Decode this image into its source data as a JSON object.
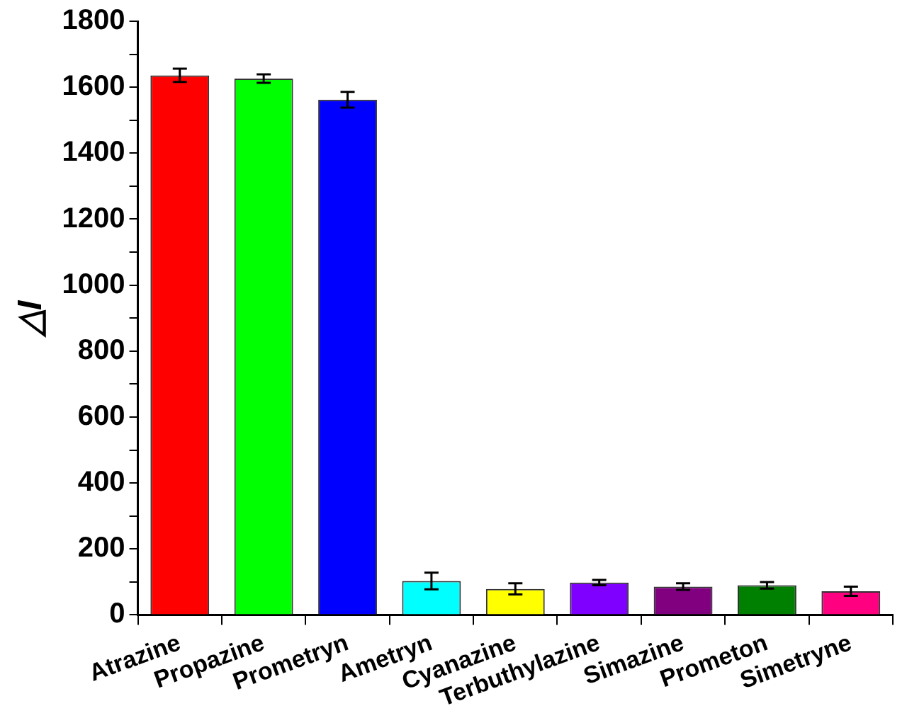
{
  "chart_data": {
    "type": "bar",
    "ylabel": "△I",
    "categories": [
      "Atrazine",
      "Propazine",
      "Prometryn",
      "Ametryn",
      "Cyanazine",
      "Terbuthylazine",
      "Simazine",
      "Prometon",
      "Simetryne"
    ],
    "values": [
      1636,
      1626,
      1562,
      103,
      79,
      98,
      86,
      90,
      72
    ],
    "errors": [
      20,
      13,
      24,
      25,
      17,
      8,
      10,
      10,
      14
    ],
    "colors": [
      "#ff0000",
      "#00ff00",
      "#0000ff",
      "#00ffff",
      "#ffff00",
      "#8000ff",
      "#800080",
      "#008000",
      "#ff0080"
    ],
    "ylim": [
      0,
      1800
    ],
    "yticks": [
      0,
      {
        "value": 100,
        "label": null
      },
      200,
      {
        "value": 300,
        "label": null
      },
      400,
      {
        "value": 500,
        "label": null
      },
      600,
      {
        "value": 700,
        "label": null
      },
      800,
      {
        "value": 900,
        "label": null
      },
      1000,
      {
        "value": 1100,
        "label": null
      },
      1200,
      {
        "value": 1300,
        "label": null
      },
      1400,
      {
        "value": 1500,
        "label": null
      },
      1600,
      {
        "value": 1700,
        "label": null
      },
      1800
    ],
    "grid": false,
    "legend": false
  }
}
